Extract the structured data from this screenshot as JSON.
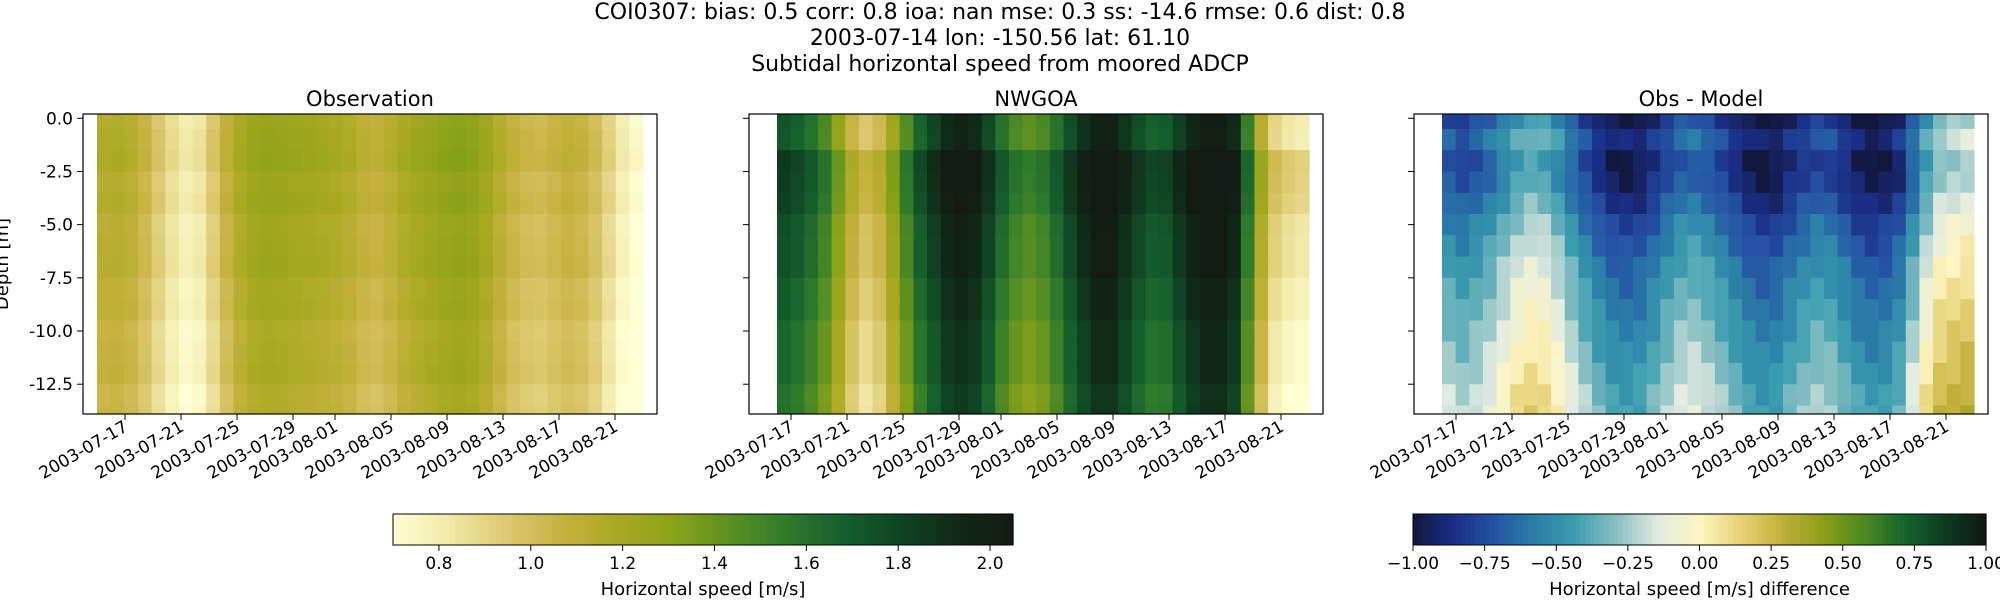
{
  "header": {
    "line1": "COI0307: bias: 0.5  corr: 0.8  ioa: nan  mse: 0.3  ss: -14.6  rmse: 0.6  dist: 0.8",
    "line2": "2003-07-14 lon: -150.56 lat: 61.10",
    "line3": "Subtidal horizontal speed from moored ADCP"
  },
  "colors": {
    "speed_cmap": [
      "#feffd4",
      "#f1e9a8",
      "#ddc971",
      "#c5b23f",
      "#a9a921",
      "#8aa218",
      "#5a9022",
      "#2e7a2c",
      "#155f2d",
      "#0f4424",
      "#102a18",
      "#141a14"
    ],
    "diff_cmap": [
      "#12173d",
      "#1b2e86",
      "#2554a5",
      "#2a7ea8",
      "#3e9fb0",
      "#8dc1c4",
      "#e3ece2",
      "#fdf5c2",
      "#e8d277",
      "#c2b13b",
      "#8c9f18",
      "#4d8a21",
      "#16652c",
      "#0d3b22",
      "#101812"
    ]
  },
  "chart_data": [
    {
      "type": "heatmap",
      "title": "Observation",
      "xlabel": "",
      "ylabel": "Depth [m]",
      "x_ticks": [
        "2003-07-17",
        "2003-07-21",
        "2003-07-25",
        "2003-07-29",
        "2003-08-01",
        "2003-08-05",
        "2003-08-09",
        "2003-08-13",
        "2003-08-17",
        "2003-08-21"
      ],
      "y_ticks": [
        "0.0",
        "-2.5",
        "-5.0",
        "-7.5",
        "-10.0",
        "-12.5"
      ],
      "xlim": [
        "2003-07-14",
        "2003-08-24"
      ],
      "data_start": "2003-07-15",
      "data_end": "2003-08-23",
      "ylim": [
        -13.9,
        0.2
      ],
      "depth_levels": [
        0,
        -1,
        -2,
        -3,
        -4,
        -5,
        -6,
        -7,
        -8,
        -9,
        -10,
        -11,
        -12,
        -13,
        -14
      ],
      "colorbar": "speed",
      "time_profile": [
        1.14,
        1.15,
        1.12,
        1.05,
        0.95,
        0.86,
        0.8,
        0.83,
        0.95,
        1.08,
        1.18,
        1.24,
        1.26,
        1.25,
        1.23,
        1.22,
        1.2,
        1.18,
        1.15,
        1.1,
        1.08,
        1.12,
        1.18,
        1.22,
        1.25,
        1.28,
        1.3,
        1.28,
        1.22,
        1.14,
        1.07,
        1.03,
        1.02,
        1.05,
        1.08,
        1.06,
        1.0,
        0.9,
        0.79,
        0.72
      ],
      "depth_offset": [
        0.02,
        0.02,
        0.01,
        0.0,
        0.0,
        -0.01,
        -0.02,
        -0.03,
        -0.04,
        -0.05,
        -0.06,
        -0.07,
        -0.08,
        -0.09,
        -0.1
      ]
    },
    {
      "type": "heatmap",
      "title": "NWGOA",
      "xlabel": "",
      "x_ticks": [
        "2003-07-17",
        "2003-07-21",
        "2003-07-25",
        "2003-07-29",
        "2003-08-01",
        "2003-08-05",
        "2003-08-09",
        "2003-08-13",
        "2003-08-17",
        "2003-08-21"
      ],
      "y_ticks": [
        "0.0",
        "-2.5",
        "-5.0",
        "-7.5",
        "-10.0",
        "-12.5"
      ],
      "xlim": [
        "2003-07-14",
        "2003-08-24"
      ],
      "data_start": "2003-07-16",
      "data_end": "2003-08-23",
      "ylim": [
        -13.9,
        0.2
      ],
      "depth_levels": [
        0,
        -1,
        -2,
        -3,
        -4,
        -5,
        -6,
        -7,
        -8,
        -9,
        -10,
        -11,
        -12,
        -13,
        -14
      ],
      "colorbar": "speed",
      "time_profile": [
        1.75,
        1.7,
        1.62,
        1.5,
        1.3,
        1.08,
        0.98,
        1.05,
        1.25,
        1.48,
        1.68,
        1.82,
        1.95,
        2.0,
        1.95,
        1.8,
        1.62,
        1.5,
        1.45,
        1.5,
        1.62,
        1.78,
        1.92,
        2.02,
        2.02,
        1.9,
        1.78,
        1.7,
        1.72,
        1.85,
        1.98,
        2.05,
        2.05,
        1.95,
        1.55,
        1.15,
        0.92,
        0.85,
        0.82
      ],
      "depth_offset": [
        0.0,
        -0.03,
        0.08,
        0.1,
        0.06,
        0.03,
        0.0,
        -0.02,
        -0.04,
        -0.06,
        -0.08,
        -0.1,
        -0.12,
        -0.14,
        -0.15
      ]
    },
    {
      "type": "heatmap",
      "title": "Obs - Model",
      "xlabel": "",
      "x_ticks": [
        "2003-07-17",
        "2003-07-21",
        "2003-07-25",
        "2003-07-29",
        "2003-08-01",
        "2003-08-05",
        "2003-08-09",
        "2003-08-13",
        "2003-08-17",
        "2003-08-21"
      ],
      "xlim": [
        "2003-07-14",
        "2003-08-24"
      ],
      "data_start": "2003-07-16",
      "data_end": "2003-08-23",
      "ylim": [
        -13.9,
        0.2
      ],
      "depth_levels": [
        0,
        -1,
        -2,
        -3,
        -4,
        -5,
        -6,
        -7,
        -8,
        -9,
        -10,
        -11,
        -12,
        -13,
        -14
      ],
      "colorbar": "diff",
      "time_profile": [
        -0.55,
        -0.6,
        -0.55,
        -0.48,
        -0.38,
        -0.28,
        -0.22,
        -0.25,
        -0.35,
        -0.48,
        -0.6,
        -0.7,
        -0.78,
        -0.8,
        -0.78,
        -0.7,
        -0.6,
        -0.52,
        -0.5,
        -0.55,
        -0.62,
        -0.7,
        -0.78,
        -0.82,
        -0.8,
        -0.72,
        -0.65,
        -0.6,
        -0.62,
        -0.7,
        -0.78,
        -0.82,
        -0.8,
        -0.72,
        -0.5,
        -0.28,
        -0.12,
        -0.08,
        -0.05
      ],
      "depth_offset": [
        -0.2,
        -0.1,
        -0.18,
        -0.15,
        -0.08,
        0.0,
        0.06,
        0.12,
        0.16,
        0.2,
        0.24,
        0.28,
        0.32,
        0.36,
        0.38
      ]
    }
  ],
  "colorbars": [
    {
      "name": "speed",
      "label": "Horizontal speed [m/s]",
      "range": [
        0.7,
        2.05
      ],
      "ticks": [
        "0.8",
        "1.0",
        "1.2",
        "1.4",
        "1.6",
        "1.8",
        "2.0"
      ]
    },
    {
      "name": "diff",
      "label": "Horizontal speed [m/s] difference",
      "range": [
        -1.0,
        1.0
      ],
      "ticks": [
        "−1.00",
        "−0.75",
        "−0.50",
        "−0.25",
        "0.00",
        "0.25",
        "0.50",
        "0.75",
        "1.00"
      ]
    }
  ]
}
